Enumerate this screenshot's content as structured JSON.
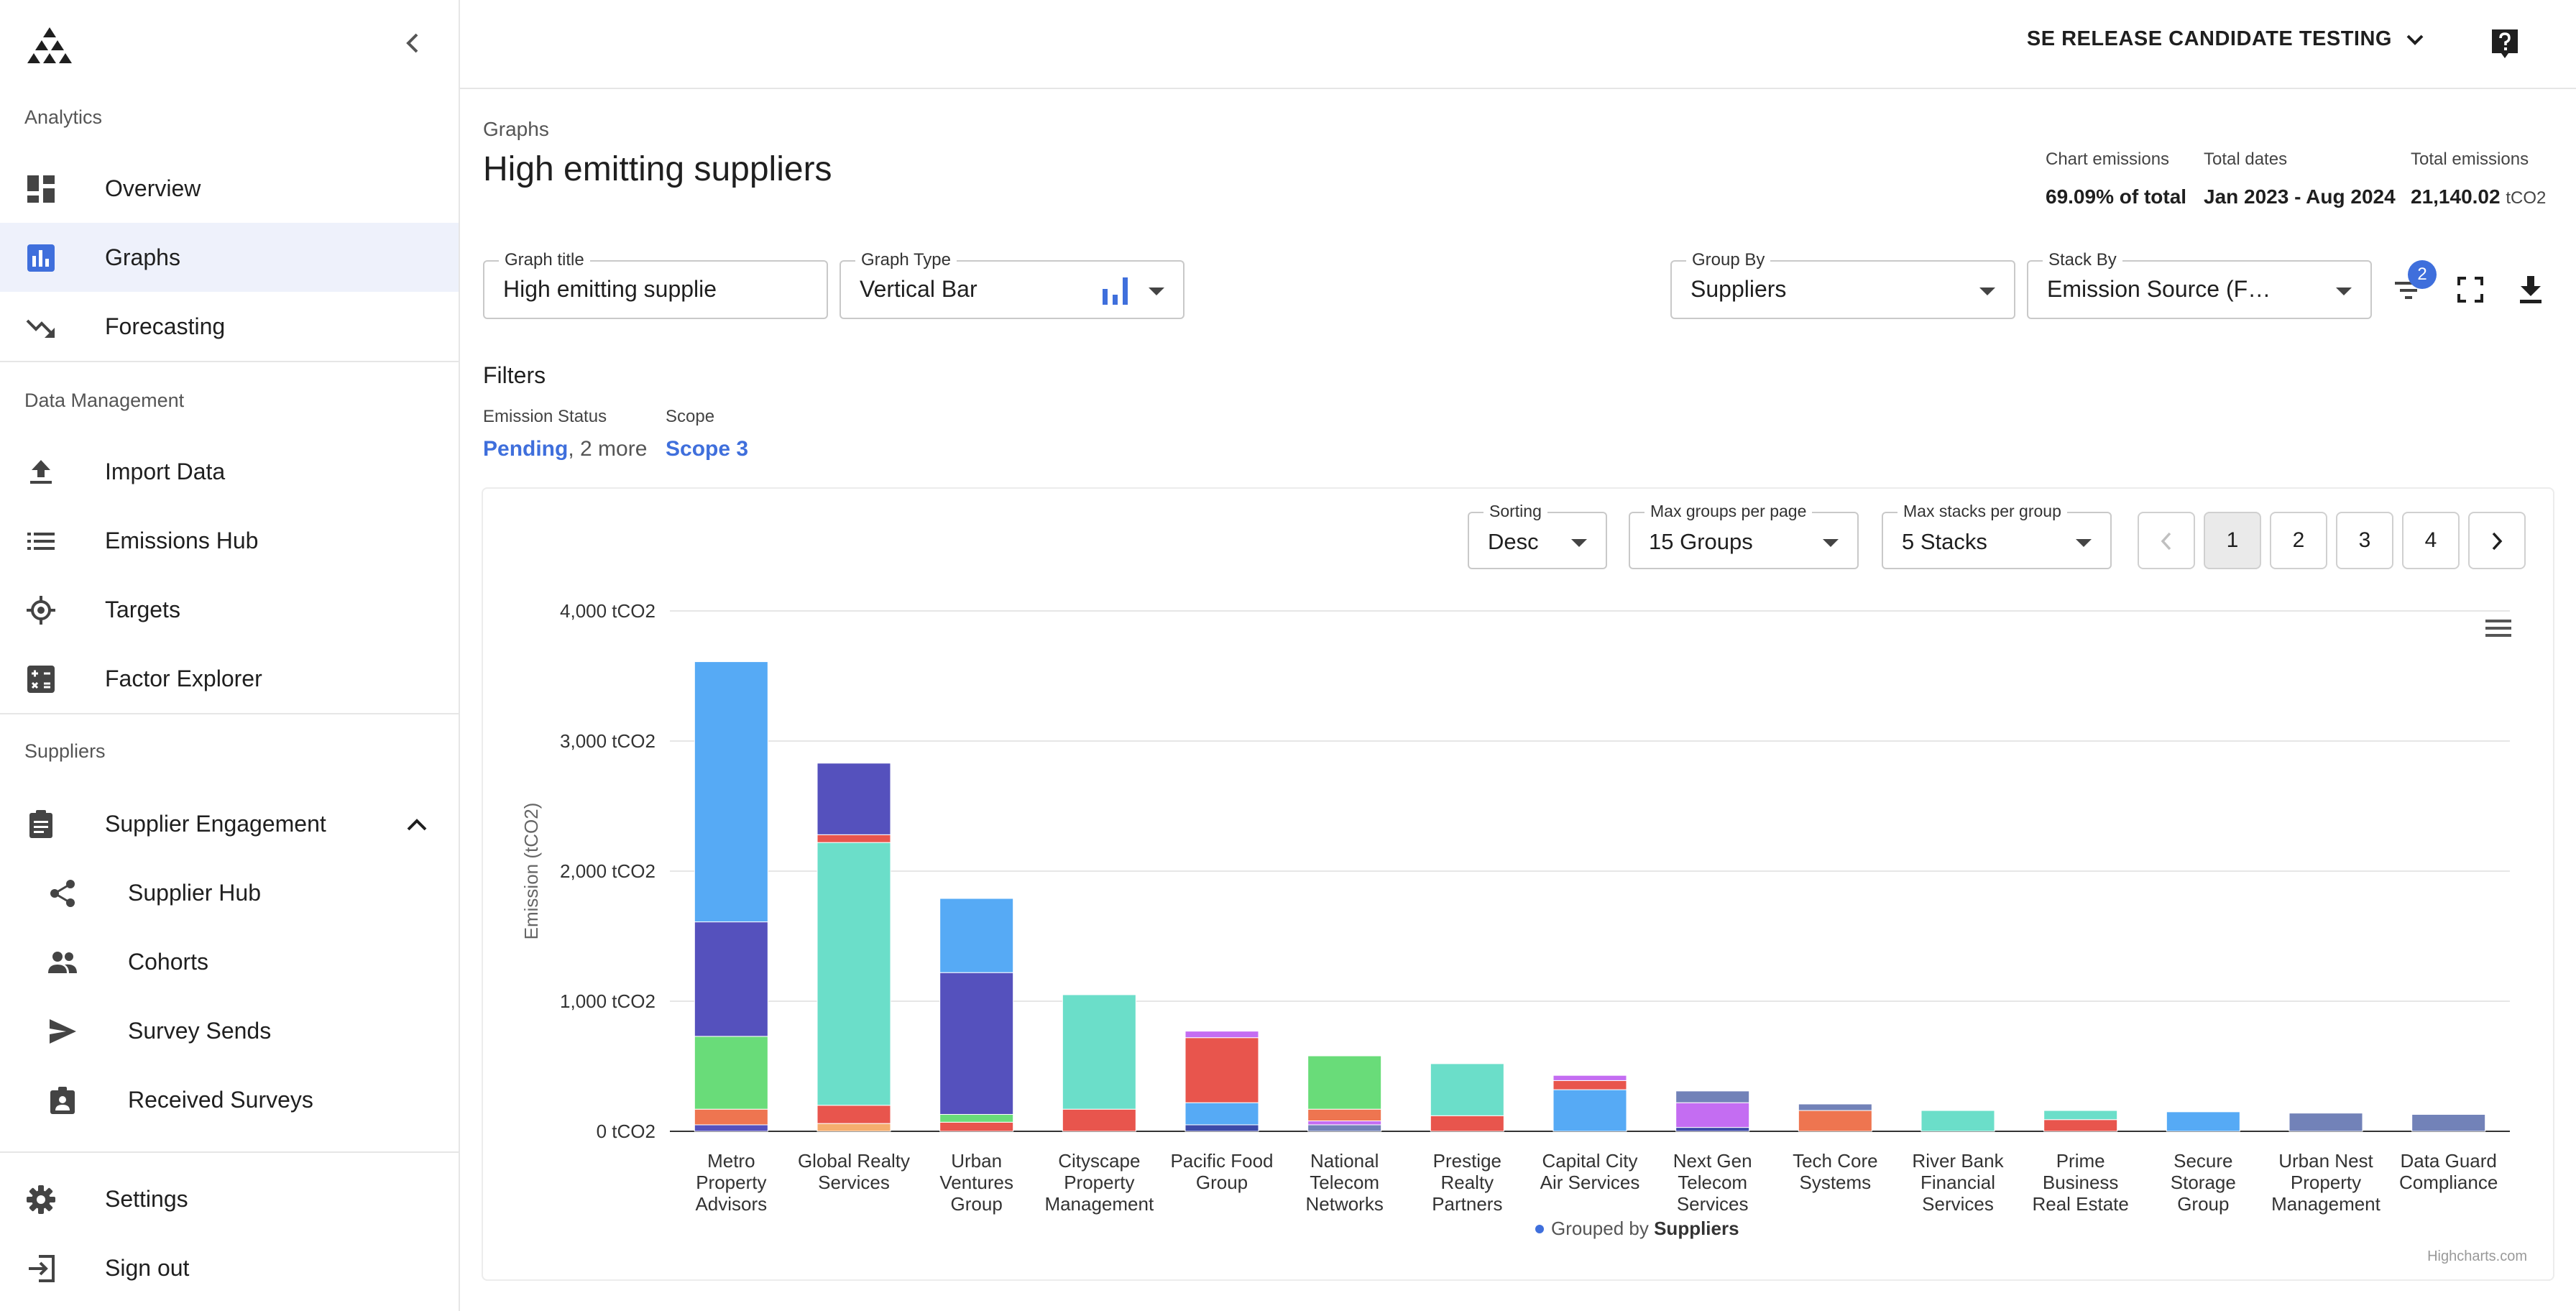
{
  "sidebar": {
    "sections": [
      {
        "label": "Analytics",
        "items": [
          {
            "label": "Overview",
            "icon": "dashboard-icon"
          },
          {
            "label": "Graphs",
            "icon": "bar-chart-icon",
            "active": true
          },
          {
            "label": "Forecasting",
            "icon": "trending-down-icon"
          }
        ]
      },
      {
        "label": "Data Management",
        "items": [
          {
            "label": "Import Data",
            "icon": "upload-icon"
          },
          {
            "label": "Emissions Hub",
            "icon": "list-icon"
          },
          {
            "label": "Targets",
            "icon": "target-icon"
          },
          {
            "label": "Factor Explorer",
            "icon": "calculator-icon"
          }
        ]
      },
      {
        "label": "Suppliers",
        "items": [
          {
            "label": "Supplier Engagement",
            "icon": "clipboard-icon",
            "expanded": true
          },
          {
            "label": "Supplier Hub",
            "icon": "share-icon"
          },
          {
            "label": "Cohorts",
            "icon": "people-icon"
          },
          {
            "label": "Survey Sends",
            "icon": "send-icon"
          },
          {
            "label": "Received Surveys",
            "icon": "badge-icon"
          }
        ]
      }
    ],
    "footer": [
      {
        "label": "Settings",
        "icon": "gear-icon"
      },
      {
        "label": "Sign out",
        "icon": "sign-out-icon"
      }
    ]
  },
  "header": {
    "org": "SE RELEASE CANDIDATE TESTING"
  },
  "page": {
    "breadcrumb": "Graphs",
    "title": "High emitting suppliers"
  },
  "stats": {
    "chart_emissions_label": "Chart emissions",
    "chart_emissions_value": "69.09% of total",
    "total_dates_label": "Total dates",
    "total_dates_value": "Jan 2023 - Aug 2024",
    "total_emissions_label": "Total emissions",
    "total_emissions_value": "21,140.02",
    "total_emissions_unit": "tCO2"
  },
  "controls": {
    "graph_title_label": "Graph title",
    "graph_title_value": "High emitting supplie",
    "graph_type_label": "Graph Type",
    "graph_type_value": "Vertical Bar",
    "group_by_label": "Group By",
    "group_by_value": "Suppliers",
    "stack_by_label": "Stack By",
    "stack_by_value": "Emission Source (F…",
    "filter_badge": "2"
  },
  "filters": {
    "title": "Filters",
    "emission_status_label": "Emission Status",
    "emission_status_value": "Pending",
    "emission_status_more": "2 more",
    "scope_label": "Scope",
    "scope_value": "Scope 3"
  },
  "chart_controls": {
    "sorting_label": "Sorting",
    "sorting_value": "Desc",
    "max_groups_label": "Max groups per page",
    "max_groups_value": "15 Groups",
    "max_stacks_label": "Max stacks per group",
    "max_stacks_value": "5 Stacks",
    "pages": [
      "1",
      "2",
      "3",
      "4"
    ],
    "current_page": "1"
  },
  "colors": {
    "blue_light": "#56aaf5",
    "indigo": "#5551bd",
    "green": "#69dc79",
    "orange": "#ee7550",
    "teal": "#6bdec9",
    "red": "#e8554d",
    "violet": "#c46df2",
    "slate": "#7282b8",
    "navy": "#3d4aa8",
    "peach": "#f5ad6e",
    "accent": "#3f6fdc"
  },
  "chart_data": {
    "type": "bar",
    "stacked": true,
    "title": "",
    "ylabel": "Emission (tCO2)",
    "y_unit": "tCO2",
    "ylim": [
      0,
      4000
    ],
    "y_ticks": [
      "0 tCO2",
      "1,000 tCO2",
      "2,000 tCO2",
      "3,000 tCO2",
      "4,000 tCO2"
    ],
    "legend": "Grouped by",
    "legend_group": "Suppliers",
    "credit": "Highcharts.com",
    "categories": [
      [
        "Metro",
        "Property",
        "Advisors"
      ],
      [
        "Global Realty",
        "Services"
      ],
      [
        "Urban",
        "Ventures",
        "Group"
      ],
      [
        "Cityscape",
        "Property",
        "Management"
      ],
      [
        "Pacific Food",
        "Group"
      ],
      [
        "National",
        "Telecom",
        "Networks"
      ],
      [
        "Prestige",
        "Realty",
        "Partners"
      ],
      [
        "Capital City",
        "Air Services"
      ],
      [
        "Next Gen",
        "Telecom",
        "Services"
      ],
      [
        "Tech Core",
        "Systems"
      ],
      [
        "River Bank",
        "Financial",
        "Services"
      ],
      [
        "Prime",
        "Business",
        "Real Estate"
      ],
      [
        "Secure",
        "Storage",
        "Group"
      ],
      [
        "Urban Nest",
        "Property",
        "Management"
      ],
      [
        "Data Guard",
        "Compliance"
      ]
    ],
    "stacks": [
      [
        [
          "#5551bd",
          50
        ],
        [
          "#ee7550",
          120
        ],
        [
          "#69dc79",
          560
        ],
        [
          "#5551bd",
          880
        ],
        [
          "#56aaf5",
          2000
        ]
      ],
      [
        [
          "#f5ad6e",
          60
        ],
        [
          "#e8554d",
          140
        ],
        [
          "#6bdec9",
          2020
        ],
        [
          "#e8554d",
          60
        ],
        [
          "#5551bd",
          550
        ]
      ],
      [
        [
          "#e8554d",
          70
        ],
        [
          "#69dc79",
          60
        ],
        [
          "#5551bd",
          1090
        ],
        [
          "#56aaf5",
          570
        ]
      ],
      [
        [
          "#e8554d",
          170
        ],
        [
          "#6bdec9",
          880
        ]
      ],
      [
        [
          "#3d4aa8",
          50
        ],
        [
          "#56aaf5",
          170
        ],
        [
          "#e8554d",
          500
        ],
        [
          "#c46df2",
          50
        ]
      ],
      [
        [
          "#7282b8",
          50
        ],
        [
          "#c46df2",
          30
        ],
        [
          "#ee7550",
          90
        ],
        [
          "#69dc79",
          410
        ]
      ],
      [
        [
          "#e8554d",
          120
        ],
        [
          "#6bdec9",
          400
        ]
      ],
      [
        [
          "#56aaf5",
          320
        ],
        [
          "#e8554d",
          70
        ],
        [
          "#c46df2",
          40
        ]
      ],
      [
        [
          "#3d4aa8",
          30
        ],
        [
          "#c46df2",
          190
        ],
        [
          "#7282b8",
          90
        ]
      ],
      [
        [
          "#ee7550",
          160
        ],
        [
          "#7282b8",
          50
        ]
      ],
      [
        [
          "#6bdec9",
          160
        ]
      ],
      [
        [
          "#e8554d",
          90
        ],
        [
          "#6bdec9",
          70
        ]
      ],
      [
        [
          "#56aaf5",
          150
        ]
      ],
      [
        [
          "#7282b8",
          140
        ]
      ],
      [
        [
          "#7282b8",
          130
        ]
      ]
    ]
  }
}
